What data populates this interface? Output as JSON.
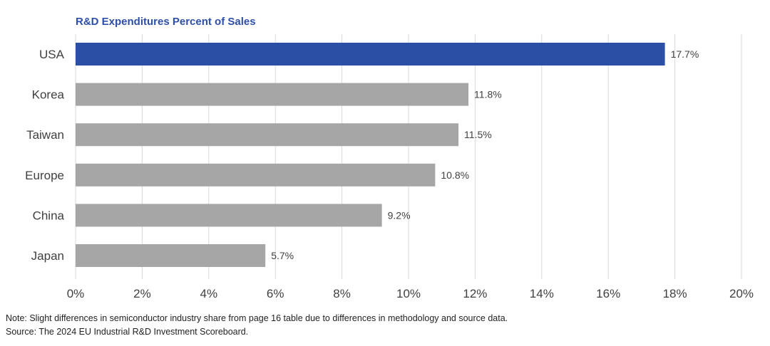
{
  "chart_data": {
    "type": "bar",
    "orientation": "horizontal",
    "title": "R&D Expenditures Percent of Sales",
    "categories": [
      "USA",
      "Korea",
      "Taiwan",
      "Europe",
      "China",
      "Japan"
    ],
    "values": [
      17.7,
      11.8,
      11.5,
      10.8,
      9.2,
      5.7
    ],
    "value_labels": [
      "17.7%",
      "11.8%",
      "11.5%",
      "10.8%",
      "9.2%",
      "5.7%"
    ],
    "highlight_category": "USA",
    "x_ticks": [
      0,
      2,
      4,
      6,
      8,
      10,
      12,
      14,
      16,
      18,
      20
    ],
    "x_tick_labels": [
      "0%",
      "2%",
      "4%",
      "6%",
      "8%",
      "10%",
      "12%",
      "14%",
      "16%",
      "18%",
      "20%"
    ],
    "xlim": [
      0,
      20
    ],
    "xlabel": "",
    "ylabel": "",
    "grid": "vertical",
    "colors": {
      "highlight": "#2a4fa5",
      "default": "#a6a6a6",
      "grid": "#d9d9d9",
      "title": "#2e4fa8"
    }
  },
  "footnotes": {
    "note": "Note: Slight differences in semiconductor industry share from page 16 table due to differences in methodology and source data.",
    "source": "Source: The 2024 EU Industrial R&D Investment Scoreboard."
  }
}
